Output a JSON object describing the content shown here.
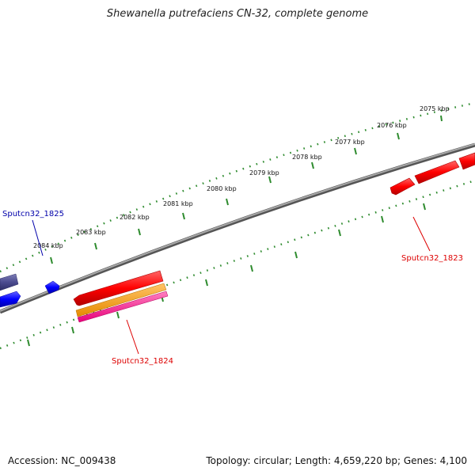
{
  "title": "Shewanella putrefaciens CN-32, complete genome",
  "footer": {
    "accession": "Accession: NC_009438",
    "summary": "Topology: circular; Length: 4,659,220 bp; Genes: 4,100"
  },
  "colors": {
    "backbone": "#8a8a8a",
    "tick": "#2e8b2e",
    "forward_gene": "#ff0000",
    "reverse_gene": "#0000ff",
    "other_gene": "#4b4b8f",
    "orange_feature": "#ff9900",
    "pink_feature": "#ff3399"
  },
  "ticks": [
    "2075 kbp",
    "2076 kbp",
    "2077 kbp",
    "2078 kbp",
    "2079 kbp",
    "2080 kbp",
    "2081 kbp",
    "2082 kbp",
    "2083 kbp",
    "2084 kbp"
  ],
  "genes": [
    {
      "label": "Sputcn32_1825",
      "color": "#0000aa"
    },
    {
      "label": "Sputcn32_1824",
      "color": "#dd0000"
    },
    {
      "label": "Sputcn32_1823",
      "color": "#dd0000"
    }
  ]
}
